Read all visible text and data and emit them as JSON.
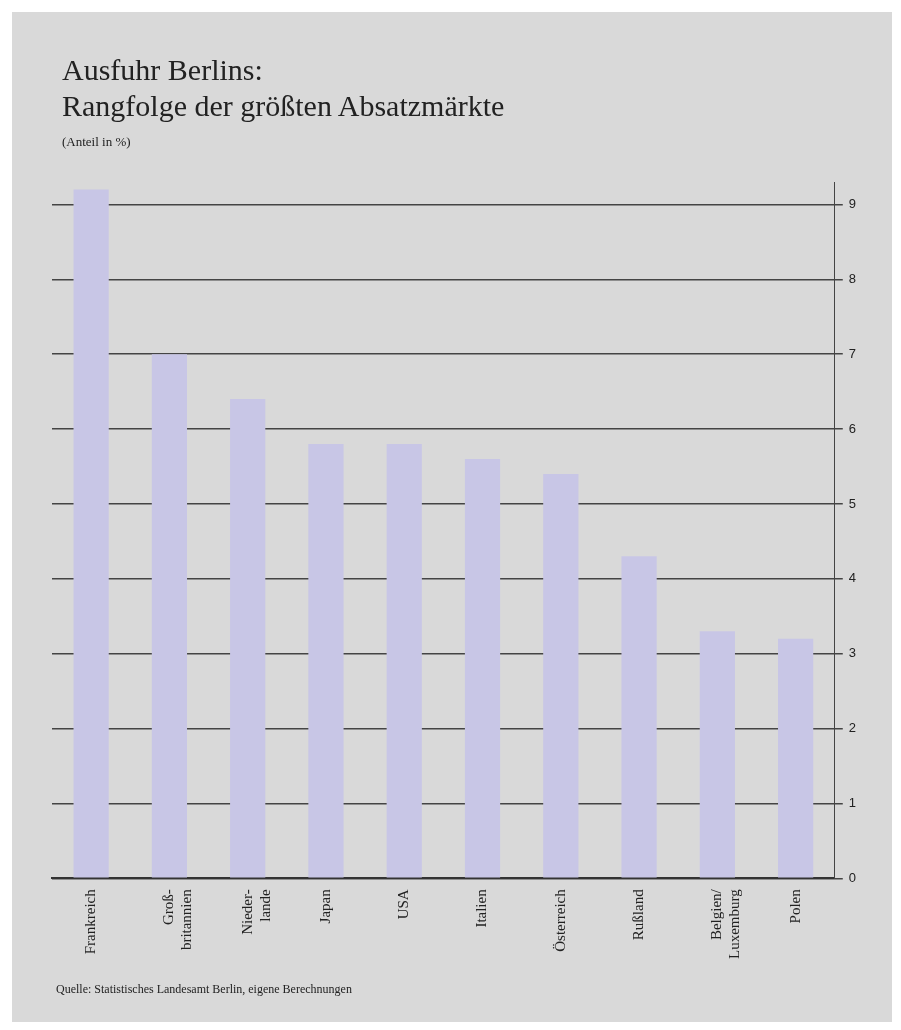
{
  "chart_data": {
    "type": "bar",
    "title": "Ausfuhr Berlins:\nRangfolge der größten Absatzmärkte",
    "subtitle": "(Anteil in %)",
    "categories": [
      "Frankreich",
      "Groß-\nbritannien",
      "Nieder-\nlande",
      "Japan",
      "USA",
      "Italien",
      "Österreich",
      "Rußland",
      "Belgien/\nLuxemburg",
      "Polen"
    ],
    "values": [
      9.2,
      7.0,
      6.4,
      5.8,
      5.8,
      5.6,
      5.4,
      4.3,
      3.3,
      3.2
    ],
    "color": "#c8c6e6",
    "ylim": [
      0,
      9.3
    ],
    "yticks": [
      0,
      1,
      2,
      3,
      4,
      5,
      6,
      7,
      8,
      9
    ],
    "grid": "y",
    "annotations": [
      "Quelle: Statistisches Landesamt Berlin, eigene Berechnungen"
    ]
  }
}
